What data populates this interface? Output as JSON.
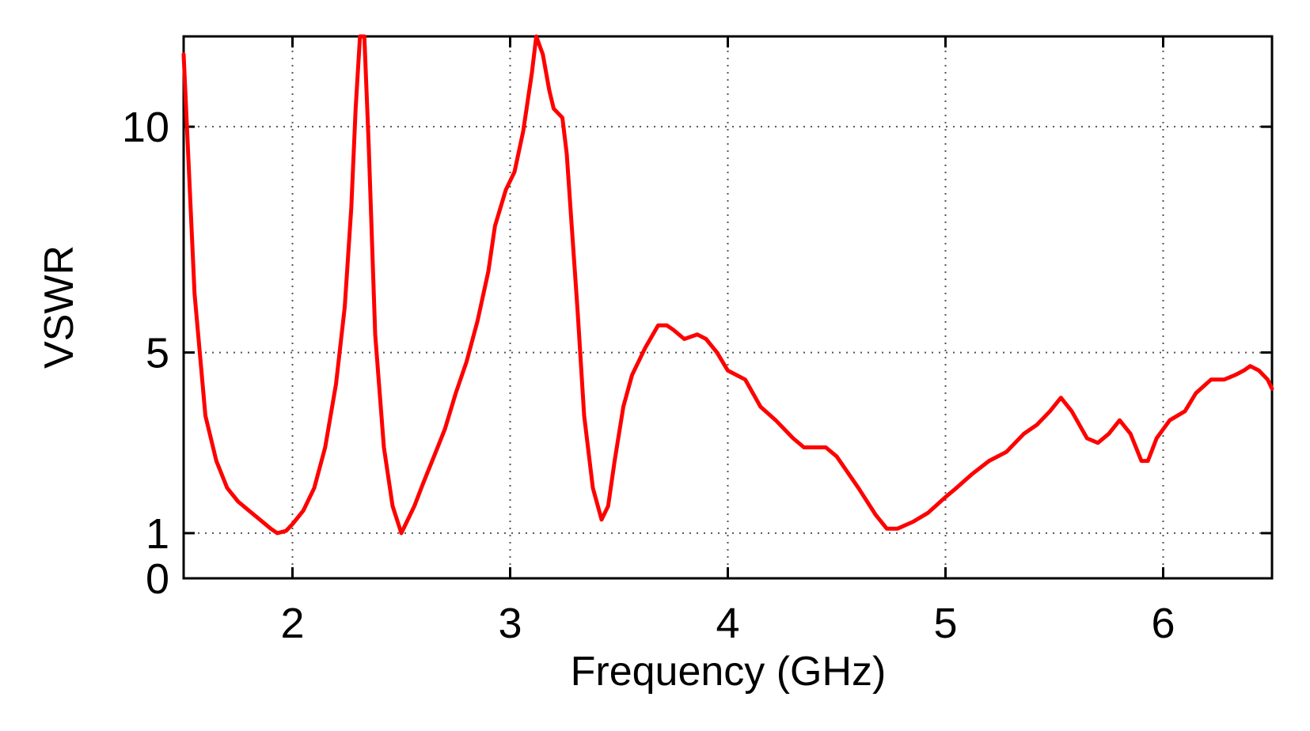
{
  "chart_data": {
    "type": "line",
    "title": "",
    "xlabel": "Frequency (GHz)",
    "ylabel": "VSWR",
    "xlim": [
      1.5,
      6.5
    ],
    "ylim": [
      0,
      12
    ],
    "x_ticks": [
      2,
      3,
      4,
      5,
      6
    ],
    "y_ticks": [
      0,
      1,
      5,
      10
    ],
    "grid": true,
    "legend": "none",
    "series": [
      {
        "color": "#ff0000",
        "x": [
          1.5,
          1.55,
          1.6,
          1.65,
          1.7,
          1.75,
          1.8,
          1.85,
          1.9,
          1.93,
          1.97,
          2.0,
          2.05,
          2.1,
          2.15,
          2.2,
          2.24,
          2.27,
          2.29,
          2.31,
          2.33,
          2.35,
          2.38,
          2.42,
          2.46,
          2.5,
          2.52,
          2.56,
          2.6,
          2.65,
          2.7,
          2.75,
          2.8,
          2.85,
          2.9,
          2.93,
          2.98,
          3.02,
          3.06,
          3.1,
          3.12,
          3.15,
          3.18,
          3.2,
          3.24,
          3.26,
          3.28,
          3.31,
          3.34,
          3.38,
          3.42,
          3.45,
          3.48,
          3.52,
          3.56,
          3.62,
          3.68,
          3.72,
          3.75,
          3.8,
          3.86,
          3.9,
          3.95,
          4.0,
          4.08,
          4.15,
          4.22,
          4.3,
          4.35,
          4.45,
          4.5,
          4.6,
          4.68,
          4.73,
          4.78,
          4.85,
          4.92,
          5.0,
          5.05,
          5.12,
          5.2,
          5.28,
          5.36,
          5.42,
          5.48,
          5.53,
          5.58,
          5.65,
          5.7,
          5.75,
          5.8,
          5.85,
          5.9,
          5.93,
          5.97,
          6.03,
          6.1,
          6.15,
          6.22,
          6.28,
          6.33,
          6.37,
          6.4,
          6.44,
          6.48,
          6.5
        ],
        "values": [
          11.6,
          6.3,
          3.6,
          2.6,
          2.0,
          1.7,
          1.5,
          1.3,
          1.1,
          1.0,
          1.05,
          1.2,
          1.5,
          2.0,
          2.9,
          4.3,
          6.0,
          8.2,
          10.4,
          12.0,
          12.0,
          9.6,
          5.4,
          2.9,
          1.6,
          1.0,
          1.2,
          1.6,
          2.1,
          2.7,
          3.3,
          4.1,
          4.8,
          5.7,
          6.8,
          7.8,
          8.6,
          9.0,
          9.9,
          11.2,
          12.0,
          11.6,
          10.8,
          10.4,
          10.2,
          9.4,
          8.0,
          5.9,
          3.6,
          2.0,
          1.3,
          1.6,
          2.6,
          3.8,
          4.5,
          5.1,
          5.6,
          5.6,
          5.5,
          5.3,
          5.4,
          5.3,
          5.0,
          4.6,
          4.4,
          3.8,
          3.5,
          3.1,
          2.9,
          2.9,
          2.7,
          2.0,
          1.4,
          1.1,
          1.1,
          1.25,
          1.45,
          1.8,
          2.0,
          2.3,
          2.6,
          2.8,
          3.2,
          3.4,
          3.7,
          4.0,
          3.7,
          3.1,
          3.0,
          3.2,
          3.5,
          3.2,
          2.6,
          2.6,
          3.1,
          3.5,
          3.7,
          4.1,
          4.4,
          4.4,
          4.5,
          4.6,
          4.7,
          4.6,
          4.4,
          4.2
        ]
      }
    ]
  }
}
